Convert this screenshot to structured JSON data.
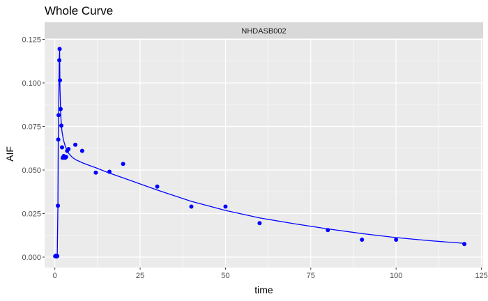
{
  "chart_data": {
    "type": "scatter",
    "title": "Whole Curve",
    "facet_label": "NHDASB002",
    "xlabel": "time",
    "ylabel": "AIF",
    "xlim": [
      -3,
      125.5
    ],
    "ylim": [
      -0.006,
      0.1256
    ],
    "x_ticks": [
      0,
      25,
      50,
      75,
      100,
      125
    ],
    "y_ticks": [
      0.0,
      0.025,
      0.05,
      0.075,
      0.1,
      0.125
    ],
    "y_tick_labels": [
      "0.000",
      "0.025",
      "0.050",
      "0.075",
      "0.100",
      "0.125"
    ],
    "grid": true,
    "colors": {
      "points": "#0000ff",
      "fit_line": "#0000ff",
      "panel": "#ebebeb",
      "strip": "#d9d9d9"
    },
    "series": [
      {
        "kind": "points",
        "x": [
          0.1,
          0.3,
          0.5,
          0.7,
          0.9,
          1.0,
          1.1,
          1.3,
          1.4,
          1.5,
          1.7,
          1.9,
          2.1,
          2.3,
          2.6,
          3.0,
          3.3,
          3.6,
          4.0,
          6.0,
          8.0,
          12.0,
          16.0,
          20.0,
          30.0,
          40.0,
          50.0,
          60.0,
          80.0,
          90.0,
          100.0,
          120.0
        ],
        "y": [
          0.0005,
          0.0008,
          0.0004,
          0.0006,
          0.0295,
          0.0675,
          0.0815,
          0.113,
          0.1195,
          0.1015,
          0.085,
          0.0755,
          0.063,
          0.057,
          0.058,
          0.057,
          0.0575,
          0.061,
          0.062,
          0.0645,
          0.061,
          0.0485,
          0.049,
          0.0535,
          0.0405,
          0.029,
          0.029,
          0.0195,
          0.0155,
          0.01,
          0.01,
          0.0075
        ]
      },
      {
        "kind": "line",
        "x": [
          0,
          0.7,
          0.9,
          1.0,
          1.1,
          1.3,
          1.4,
          1.5,
          1.7,
          1.9,
          2.1,
          2.5,
          3.0,
          3.5,
          4.0,
          5.0,
          6.0,
          8.0,
          10.0,
          12.0,
          16.0,
          20.0,
          25.0,
          30.0,
          40.0,
          50.0,
          60.0,
          70.0,
          80.0,
          90.0,
          100.0,
          110.0,
          120.0
        ],
        "y": [
          0.0005,
          0.0005,
          0.0295,
          0.0675,
          0.0815,
          0.113,
          0.1195,
          0.097,
          0.083,
          0.076,
          0.072,
          0.0675,
          0.064,
          0.0615,
          0.0597,
          0.0575,
          0.056,
          0.0542,
          0.0527,
          0.0513,
          0.0482,
          0.0455,
          0.042,
          0.0385,
          0.032,
          0.0268,
          0.0225,
          0.0192,
          0.0162,
          0.0135,
          0.0112,
          0.0094,
          0.0079
        ]
      }
    ]
  }
}
